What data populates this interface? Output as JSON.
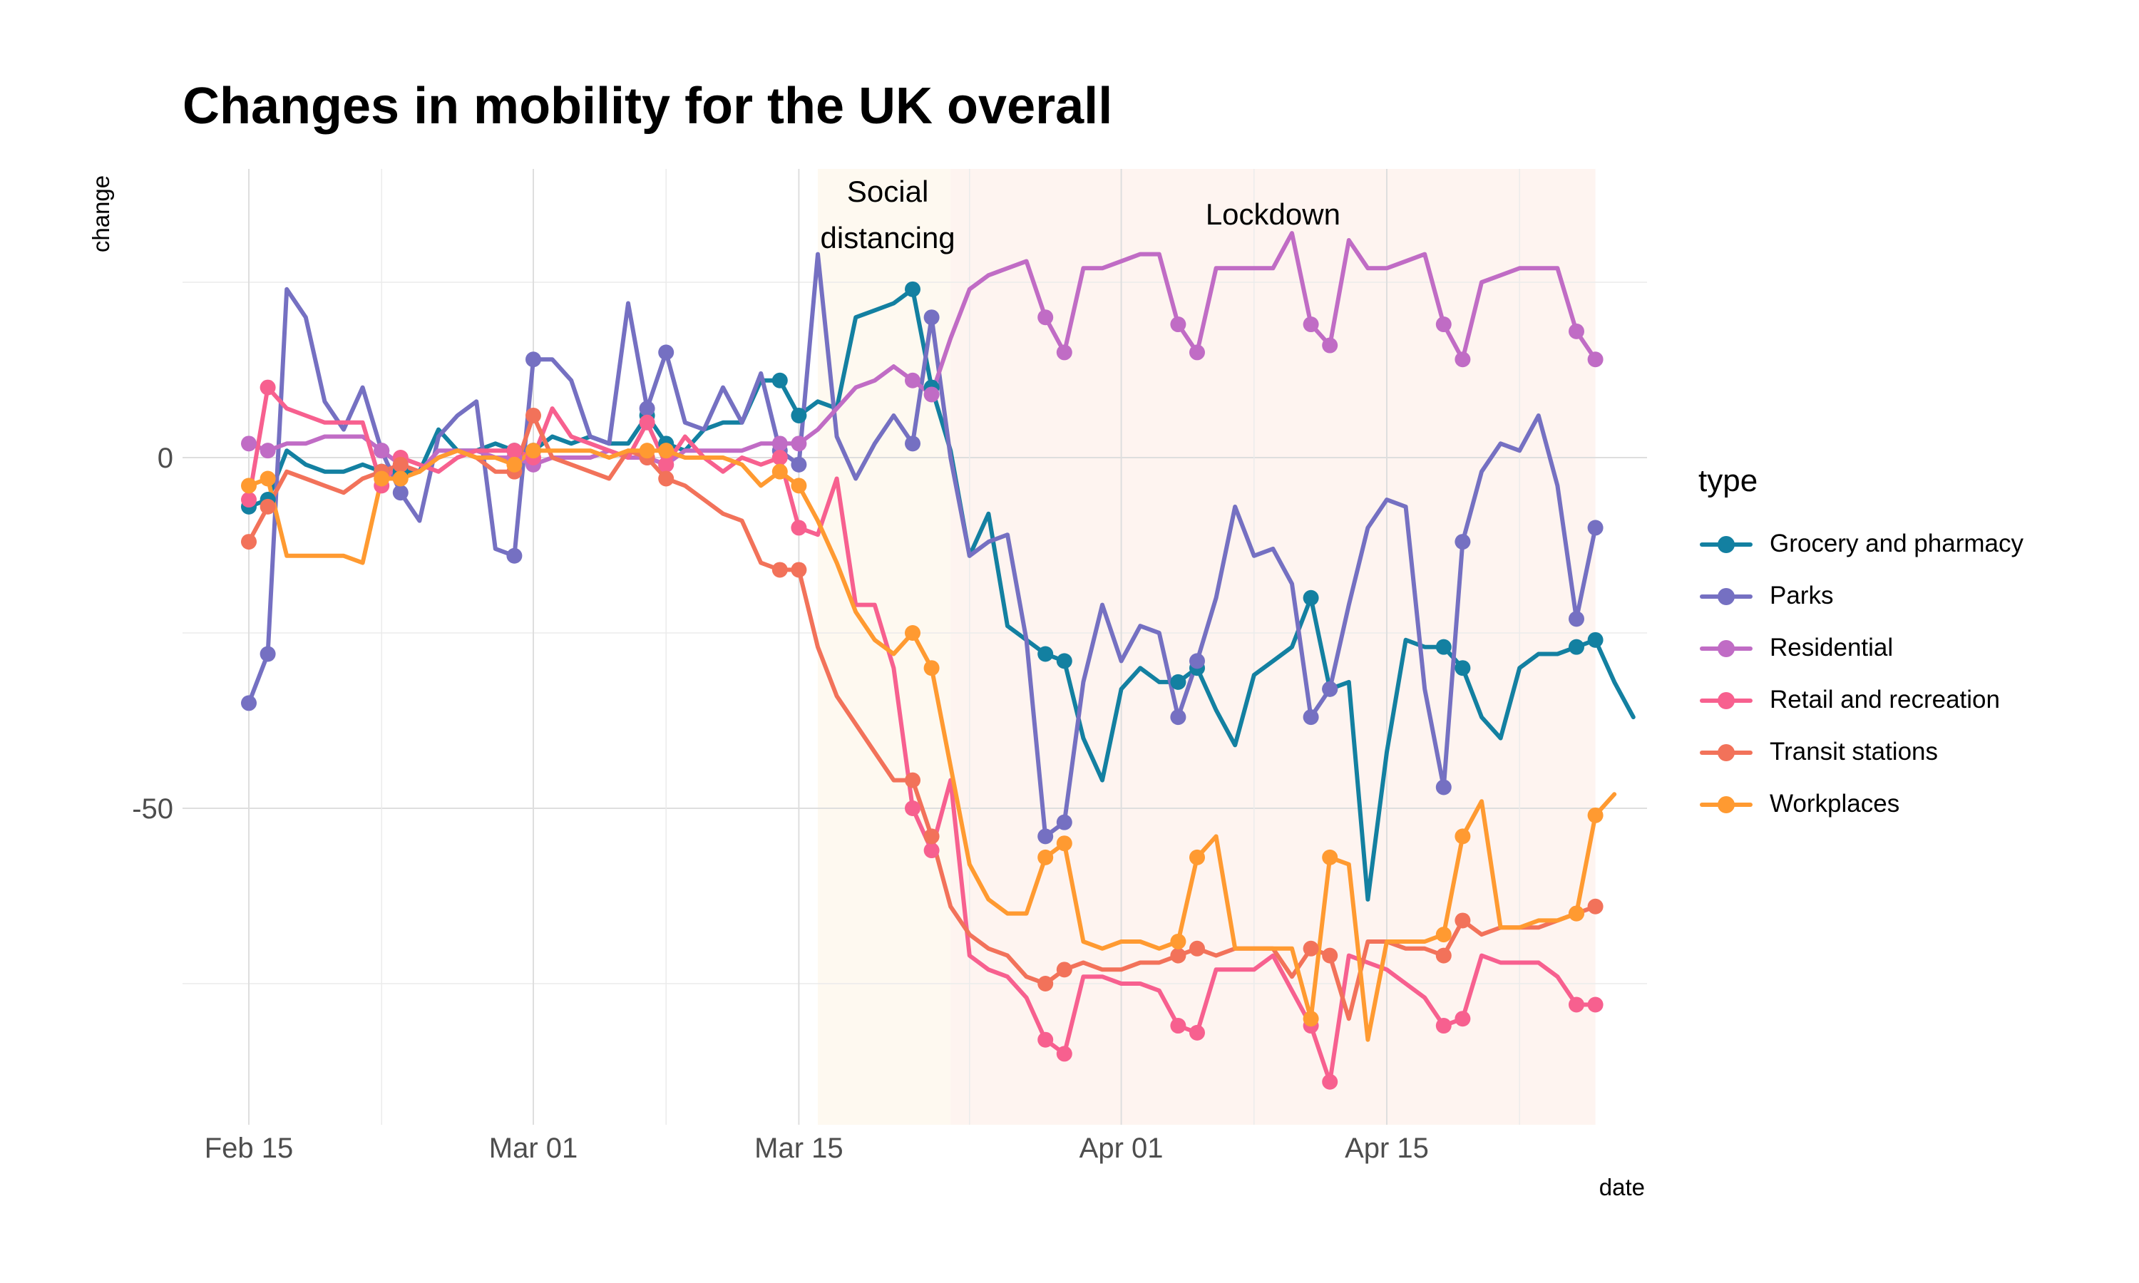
{
  "chart_data": {
    "type": "line",
    "title": "Changes in mobility for the UK overall",
    "xlabel": "date",
    "ylabel": "change",
    "x_ticks": [
      {
        "date": "2020-02-15",
        "label": "Feb 15"
      },
      {
        "date": "2020-03-01",
        "label": "Mar 01"
      },
      {
        "date": "2020-03-15",
        "label": "Mar 15"
      },
      {
        "date": "2020-04-01",
        "label": "Apr 01"
      },
      {
        "date": "2020-04-15",
        "label": "Apr 15"
      }
    ],
    "y_ticks": [
      0,
      -50
    ],
    "ylim": [
      -95,
      42
    ],
    "xlim": [
      "2020-02-11",
      "2020-04-29"
    ],
    "grid": true,
    "legend_title": "type",
    "legend_position": "right",
    "x_start": "2020-02-15",
    "periods": [
      {
        "label": "Social distancing",
        "lines": [
          "Social",
          "distancing"
        ],
        "start": "2020-03-16",
        "end": "2020-03-23",
        "color": "#FEF9F0"
      },
      {
        "label": "Lockdown",
        "lines": [
          "Lockdown"
        ],
        "start": "2020-03-23",
        "end": "2020-04-26",
        "color": "#FEF4F0"
      }
    ],
    "weekend_dates": [
      "2020-02-15",
      "2020-02-16",
      "2020-02-22",
      "2020-02-23",
      "2020-02-29",
      "2020-03-01",
      "2020-03-07",
      "2020-03-08",
      "2020-03-14",
      "2020-03-15",
      "2020-03-21",
      "2020-03-22",
      "2020-03-28",
      "2020-03-29",
      "2020-04-04",
      "2020-04-05",
      "2020-04-11",
      "2020-04-12",
      "2020-04-18",
      "2020-04-19",
      "2020-04-25",
      "2020-04-26"
    ],
    "series": [
      {
        "name": "Grocery and pharmacy",
        "color": "#1380A1",
        "values": [
          -7,
          -6,
          1,
          -1,
          -2,
          -2,
          -1,
          -2,
          -2,
          -2,
          4,
          1,
          1,
          2,
          1,
          1,
          3,
          2,
          3,
          2,
          2,
          6,
          2,
          1,
          4,
          5,
          5,
          11,
          11,
          6,
          8,
          7,
          20,
          21,
          22,
          24,
          10,
          1,
          -14,
          -8,
          -24,
          -26,
          -28,
          -29,
          -40,
          -46,
          -33,
          -30,
          -32,
          -32,
          -30,
          -36,
          -41,
          -31,
          -29,
          -27,
          -20,
          -33,
          -32,
          -63,
          -42,
          -26,
          -27,
          -27,
          -30,
          -37,
          -40,
          -30,
          -28,
          -28,
          -27,
          -26,
          -32,
          -37
        ]
      },
      {
        "name": "Parks",
        "color": "#7570C2",
        "values": [
          -35,
          -28,
          24,
          20,
          8,
          4,
          10,
          1,
          -5,
          -9,
          3,
          6,
          8,
          -13,
          -14,
          14,
          14,
          11,
          3,
          2,
          22,
          7,
          15,
          5,
          4,
          10,
          5,
          12,
          1,
          -1,
          29,
          3,
          -3,
          2,
          6,
          2,
          20,
          0,
          -14,
          -12,
          -11,
          -26,
          -54,
          -52,
          -32,
          -21,
          -29,
          -24,
          -25,
          -37,
          -29,
          -20,
          -7,
          -14,
          -13,
          -18,
          -37,
          -33,
          -21,
          -10,
          -6,
          -7,
          -33,
          -47,
          -12,
          -2,
          2,
          1,
          6,
          -4,
          -23,
          -10
        ]
      },
      {
        "name": "Residential",
        "color": "#C06CC5",
        "values": [
          2,
          1,
          2,
          2,
          3,
          3,
          3,
          1,
          -1,
          -2,
          1,
          1,
          1,
          0,
          0,
          -1,
          0,
          0,
          0,
          1,
          0,
          0,
          -1,
          1,
          1,
          1,
          1,
          2,
          2,
          2,
          4,
          7,
          10,
          11,
          13,
          11,
          9,
          17,
          24,
          26,
          27,
          28,
          20,
          15,
          27,
          27,
          28,
          29,
          29,
          19,
          15,
          27,
          27,
          27,
          27,
          32,
          19,
          16,
          31,
          27,
          27,
          28,
          29,
          19,
          14,
          25,
          26,
          27,
          27,
          27,
          18,
          14
        ]
      },
      {
        "name": "Retail and recreation",
        "color": "#F7608F",
        "values": [
          -6,
          10,
          7,
          6,
          5,
          5,
          5,
          -4,
          0,
          -1,
          -2,
          0,
          1,
          1,
          1,
          0,
          7,
          3,
          2,
          1,
          0,
          5,
          -1,
          3,
          0,
          -2,
          0,
          -1,
          0,
          -10,
          -11,
          -3,
          -21,
          -21,
          -30,
          -50,
          -56,
          -46,
          -71,
          -73,
          -74,
          -77,
          -83,
          -85,
          -74,
          -74,
          -75,
          -75,
          -76,
          -81,
          -82,
          -73,
          -73,
          -73,
          -71,
          -76,
          -81,
          -89,
          -71,
          -72,
          -73,
          -75,
          -77,
          -81,
          -80,
          -71,
          -72,
          -72,
          -72,
          -74,
          -78,
          -78
        ]
      },
      {
        "name": "Transit stations",
        "color": "#F2725A",
        "values": [
          -12,
          -7,
          -2,
          -3,
          -4,
          -5,
          -3,
          -2,
          -1,
          -2,
          0,
          1,
          0,
          -2,
          -2,
          6,
          0,
          -1,
          -2,
          -3,
          1,
          0,
          -3,
          -4,
          -6,
          -8,
          -9,
          -15,
          -16,
          -16,
          -27,
          -34,
          -38,
          -42,
          -46,
          -46,
          -54,
          -64,
          -68,
          -70,
          -71,
          -74,
          -75,
          -73,
          -72,
          -73,
          -73,
          -72,
          -72,
          -71,
          -70,
          -71,
          -70,
          -70,
          -70,
          -74,
          -70,
          -71,
          -80,
          -69,
          -69,
          -70,
          -70,
          -71,
          -66,
          -68,
          -67,
          -67,
          -67,
          -66,
          -65,
          -64
        ]
      },
      {
        "name": "Workplaces",
        "color": "#FF9A31",
        "values": [
          -4,
          -3,
          -14,
          -14,
          -14,
          -14,
          -15,
          -3,
          -3,
          -2,
          0,
          1,
          0,
          0,
          -1,
          1,
          1,
          1,
          1,
          0,
          1,
          1,
          1,
          0,
          0,
          0,
          -1,
          -4,
          -2,
          -4,
          -9,
          -15,
          -22,
          -26,
          -28,
          -25,
          -30,
          -44,
          -58,
          -63,
          -65,
          -65,
          -57,
          -55,
          -69,
          -70,
          -69,
          -69,
          -70,
          -69,
          -57,
          -54,
          -70,
          -70,
          -70,
          -70,
          -80,
          -57,
          -58,
          -83,
          -69,
          -69,
          -69,
          -68,
          -54,
          -49,
          -67,
          -67,
          -66,
          -66,
          -65,
          -51,
          -48
        ]
      }
    ]
  }
}
